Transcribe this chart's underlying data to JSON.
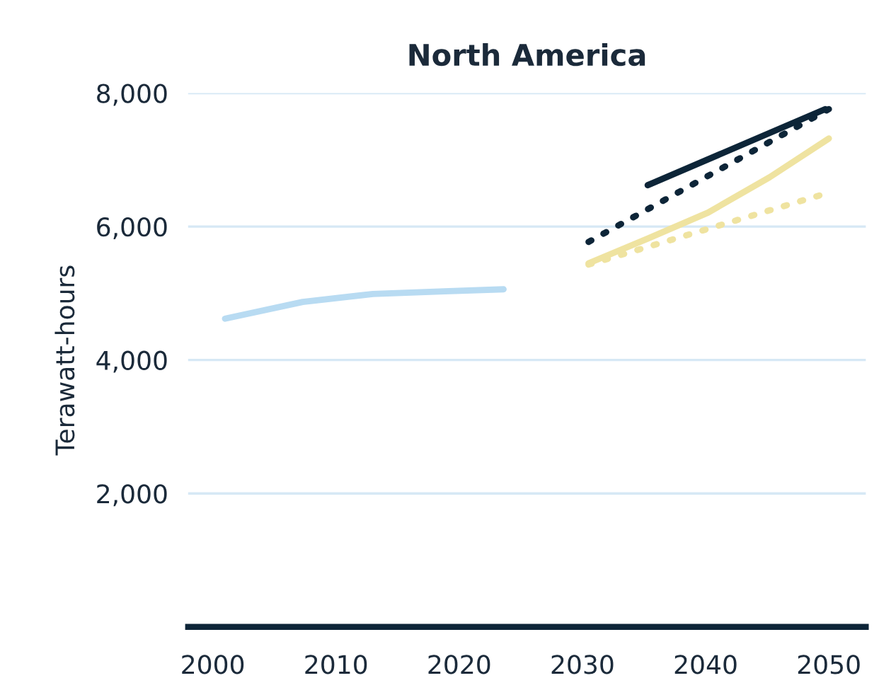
{
  "chart_data": {
    "type": "line",
    "title": "North America",
    "ylabel": "Terawatt-hours",
    "xlim": [
      1998,
      2053
    ],
    "xticks": [
      2000,
      2010,
      2020,
      2030,
      2040,
      2050
    ],
    "ylim": [
      0,
      8000
    ],
    "yticks": [
      {
        "value": 2000,
        "label": "2,000"
      },
      {
        "value": 4000,
        "label": "4,000"
      },
      {
        "value": 6000,
        "label": "6,000"
      },
      {
        "value": 8000,
        "label": "8,000"
      }
    ],
    "grid": "y",
    "legend": false,
    "series": [
      {
        "color": "#b8dbf2",
        "line_style": "solid",
        "x": [
          2001,
          2007.3,
          2013,
          2018.8,
          2023.6
        ],
        "values": [
          4620,
          4870,
          4990,
          5030,
          5060
        ]
      },
      {
        "color": "#0d2538",
        "line_style": "solid",
        "x": [
          2035.3,
          2049.7
        ],
        "values": [
          6620,
          7760
        ]
      },
      {
        "color": "#0d2538",
        "line_style": "dotted",
        "x": [
          2030.5,
          2050
        ],
        "values": [
          5770,
          7760
        ]
      },
      {
        "color": "#efe3a0",
        "line_style": "solid",
        "x": [
          2030.5,
          2035.3,
          2040.2,
          2045.2,
          2050
        ],
        "values": [
          5450,
          5820,
          6210,
          6740,
          7320
        ]
      },
      {
        "color": "#efe3a0",
        "line_style": "dotted",
        "x": [
          2030.5,
          2049.3
        ],
        "values": [
          5430,
          6470
        ]
      }
    ]
  }
}
